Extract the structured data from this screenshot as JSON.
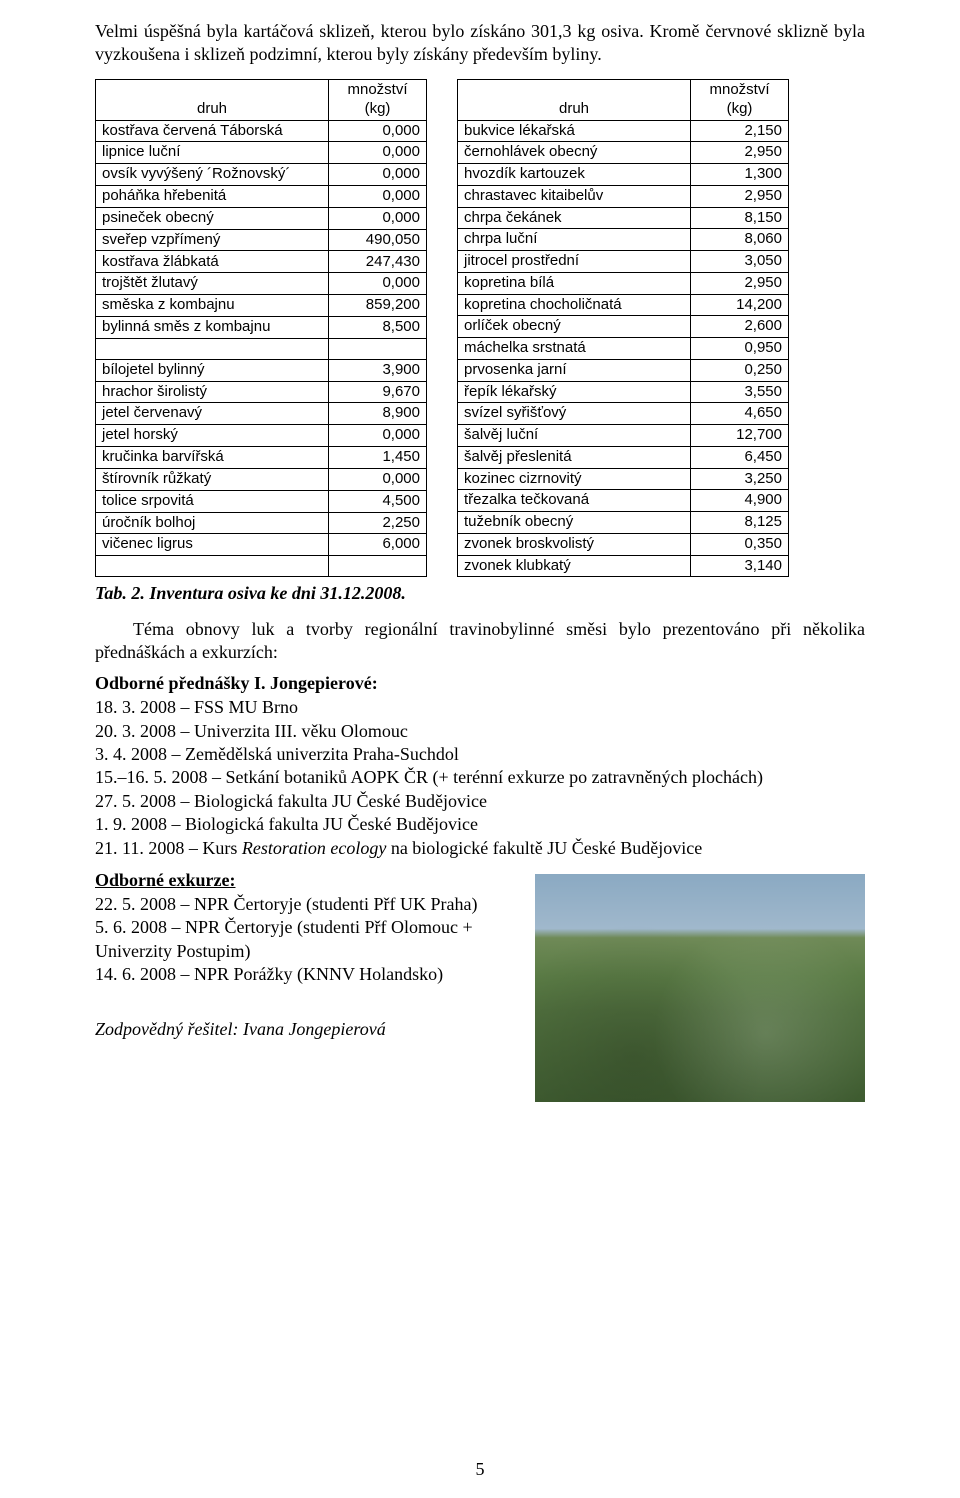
{
  "intro": "Velmi úspěšná byla kartáčová sklizeň, kterou bylo získáno 301,3 kg osiva. Kromě červnové sklizně byla vyzkoušena i sklizeň podzimní, kterou byly získány především byliny.",
  "tableHeader": {
    "col1": "druh",
    "col2": "množství\n(kg)"
  },
  "tableLeft": [
    {
      "name": "kostřava červená Táborská",
      "val": "0,000"
    },
    {
      "name": "lipnice luční",
      "val": "0,000"
    },
    {
      "name": "ovsík vyvýšený ´Rožnovský´",
      "val": "0,000"
    },
    {
      "name": "poháňka hřebenitá",
      "val": "0,000"
    },
    {
      "name": "psineček obecný",
      "val": "0,000"
    },
    {
      "name": "sveřep vzpřímený",
      "val": "490,050"
    },
    {
      "name": "kostřava žlábkatá",
      "val": "247,430"
    },
    {
      "name": "trojštět žlutavý",
      "val": "0,000"
    },
    {
      "name": "směska z kombajnu",
      "val": "859,200"
    },
    {
      "name": "bylinná směs z kombajnu",
      "val": "8,500"
    },
    {
      "name": "",
      "val": ""
    },
    {
      "name": "bílojetel bylinný",
      "val": "3,900"
    },
    {
      "name": "hrachor širolistý",
      "val": "9,670"
    },
    {
      "name": "jetel červenavý",
      "val": "8,900"
    },
    {
      "name": "jetel horský",
      "val": "0,000"
    },
    {
      "name": "kručinka barvířská",
      "val": "1,450"
    },
    {
      "name": "štírovník růžkatý",
      "val": "0,000"
    },
    {
      "name": "tolice srpovitá",
      "val": "4,500"
    },
    {
      "name": "úročník bolhoj",
      "val": "2,250"
    },
    {
      "name": "vičenec ligrus",
      "val": "6,000"
    },
    {
      "name": "",
      "val": ""
    }
  ],
  "tableRight": [
    {
      "name": "bukvice lékařská",
      "val": "2,150"
    },
    {
      "name": "černohlávek obecný",
      "val": "2,950"
    },
    {
      "name": "hvozdík kartouzek",
      "val": "1,300"
    },
    {
      "name": "chrastavec kitaibelův",
      "val": "2,950"
    },
    {
      "name": "chrpa čekánek",
      "val": "8,150"
    },
    {
      "name": "chrpa luční",
      "val": "8,060"
    },
    {
      "name": "jitrocel prostřední",
      "val": "3,050"
    },
    {
      "name": "kopretina bílá",
      "val": "2,950"
    },
    {
      "name": "kopretina chocholičnatá",
      "val": "14,200"
    },
    {
      "name": "orlíček obecný",
      "val": "2,600"
    },
    {
      "name": "máchelka srstnatá",
      "val": "0,950"
    },
    {
      "name": "prvosenka jarní",
      "val": "0,250"
    },
    {
      "name": "řepík lékařský",
      "val": "3,550"
    },
    {
      "name": "svízel syřišťový",
      "val": "4,650"
    },
    {
      "name": "šalvěj luční",
      "val": "12,700"
    },
    {
      "name": "šalvěj přeslenitá",
      "val": "6,450"
    },
    {
      "name": "kozinec cizrnovitý",
      "val": "3,250"
    },
    {
      "name": "třezalka tečkovaná",
      "val": "4,900"
    },
    {
      "name": "tužebník obecný",
      "val": "8,125"
    },
    {
      "name": "zvonek broskvolistý",
      "val": "0,350"
    },
    {
      "name": "zvonek klubkatý",
      "val": "3,140"
    }
  ],
  "caption": "Tab. 2. Inventura osiva ke dni 31.12.2008.",
  "paragraph2": "Téma obnovy luk a tvorby regionální travinobylinné směsi bylo prezentováno při několika přednáškách a exkurzích:",
  "lecturesHeading": "Odborné přednášky I. Jongepierové:",
  "lectures": [
    "18. 3. 2008 – FSS MU Brno",
    "20. 3. 2008 – Univerzita III. věku Olomouc",
    "3. 4. 2008 – Zemědělská univerzita Praha-Suchdol",
    "15.–16. 5. 2008 – Setkání botaniků AOPK ČR (+ terénní exkurze po zatravněných plochách)",
    "27. 5. 2008 – Biologická fakulta JU České Budějovice",
    "1. 9. 2008 – Biologická fakulta JU České Budějovice",
    "21. 11. 2008 – Kurs "
  ],
  "lecture7_italic": "Restoration ecology",
  "lecture7_tail": " na biologické fakultě JU České Budějovice",
  "excursionsHeading": "Odborné exkurze:",
  "excursions": [
    "22. 5. 2008 – NPR Čertoryje (studenti Přf UK Praha)",
    "5. 6. 2008 – NPR Čertoryje (studenti Přf Olomouc + Univerzity Postupim)",
    "14. 6. 2008 – NPR Porážky (KNNV Holandsko)"
  ],
  "signature": "Zodpovědný řešitel: Ivana Jongepierová",
  "pageNumber": "5"
}
